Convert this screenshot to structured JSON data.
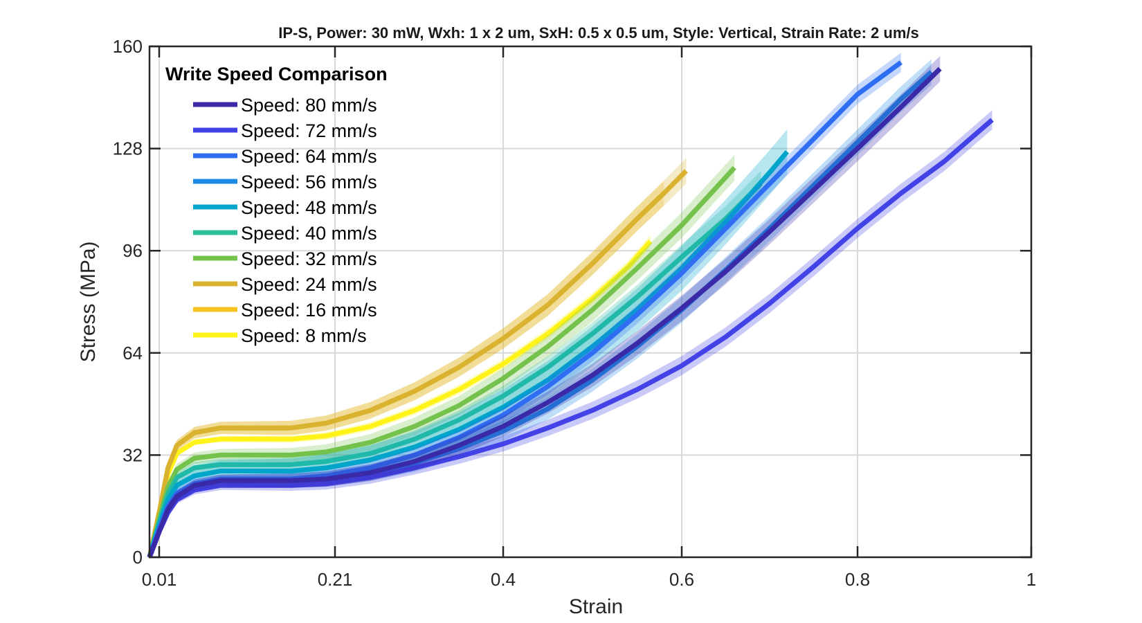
{
  "chart_data": {
    "type": "line",
    "title": "IP-S, Power: 30 mW, Wxh: 1 x 2 um, SxH: 0.5 x 0.5 um, Style: Vertical, Strain Rate: 2 um/s",
    "xlabel": "Strain",
    "ylabel": "Stress (MPa)",
    "xlim": [
      0.0,
      1.0
    ],
    "ylim": [
      0,
      160
    ],
    "xticks": [
      0.01,
      0.21,
      0.4,
      0.6,
      0.8,
      1.0
    ],
    "xtick_labels": [
      "0.01",
      "0.21",
      "0.4",
      "0.6",
      "0.8",
      "1"
    ],
    "yticks": [
      0,
      32,
      64,
      96,
      128,
      160
    ],
    "ytick_labels": [
      "0",
      "32",
      "64",
      "96",
      "128",
      "160"
    ],
    "grid": true,
    "legend": {
      "title": "Write Speed Comparison",
      "position": "top-left"
    },
    "series": [
      {
        "name": "Speed: 80 mm/s",
        "color": "#3a2aa8",
        "band": 4,
        "x": [
          0.0,
          0.01,
          0.02,
          0.03,
          0.05,
          0.08,
          0.12,
          0.16,
          0.2,
          0.25,
          0.3,
          0.35,
          0.4,
          0.45,
          0.5,
          0.55,
          0.6,
          0.65,
          0.7,
          0.75,
          0.8,
          0.85,
          0.88,
          0.895
        ],
        "y": [
          0,
          8,
          15,
          19,
          22.5,
          24,
          24,
          24,
          24.5,
          26.5,
          30,
          35,
          41,
          48.5,
          57,
          67,
          78,
          89.5,
          102,
          115,
          128,
          141,
          149,
          153
        ]
      },
      {
        "name": "Speed: 72 mm/s",
        "color": "#4242e6",
        "band": 3,
        "x": [
          0.0,
          0.01,
          0.02,
          0.03,
          0.05,
          0.08,
          0.12,
          0.16,
          0.2,
          0.25,
          0.3,
          0.35,
          0.4,
          0.45,
          0.5,
          0.55,
          0.6,
          0.65,
          0.7,
          0.75,
          0.8,
          0.85,
          0.9,
          0.955
        ],
        "y": [
          0,
          8,
          14,
          18,
          21,
          22.5,
          22.5,
          22.5,
          23,
          25,
          28,
          31.5,
          35.5,
          40.5,
          46,
          52.5,
          60,
          69,
          79.5,
          91,
          103,
          114,
          124,
          137
        ]
      },
      {
        "name": "Speed: 64 mm/s",
        "color": "#2f6ef2",
        "band": 3,
        "x": [
          0.0,
          0.01,
          0.02,
          0.03,
          0.05,
          0.08,
          0.12,
          0.16,
          0.2,
          0.25,
          0.3,
          0.35,
          0.4,
          0.45,
          0.5,
          0.55,
          0.6,
          0.65,
          0.7,
          0.75,
          0.8,
          0.85
        ],
        "y": [
          0,
          9,
          16,
          20,
          23,
          24.5,
          24.5,
          24.5,
          25.5,
          28,
          32,
          37.5,
          44.5,
          53.5,
          64,
          76,
          89,
          103,
          117,
          131,
          145,
          155
        ]
      },
      {
        "name": "Speed: 56 mm/s",
        "color": "#1e88e5",
        "band": 4,
        "x": [
          0.0,
          0.01,
          0.02,
          0.03,
          0.05,
          0.08,
          0.12,
          0.16,
          0.2,
          0.25,
          0.3,
          0.35,
          0.4,
          0.45,
          0.5,
          0.55,
          0.6,
          0.65,
          0.7,
          0.75,
          0.8,
          0.85,
          0.885
        ],
        "y": [
          0,
          9,
          16,
          20,
          23,
          24,
          24,
          24,
          24.5,
          26.5,
          29.5,
          34,
          39.5,
          46.5,
          55.5,
          66,
          77.5,
          90,
          103,
          116.5,
          130,
          143.5,
          152
        ]
      },
      {
        "name": "Speed: 48 mm/s",
        "color": "#00a6c9",
        "band": 7,
        "x": [
          0.0,
          0.01,
          0.02,
          0.03,
          0.05,
          0.08,
          0.12,
          0.16,
          0.2,
          0.25,
          0.3,
          0.35,
          0.4,
          0.45,
          0.5,
          0.55,
          0.6,
          0.65,
          0.7,
          0.72
        ],
        "y": [
          0,
          10,
          18,
          22.5,
          25.5,
          27,
          27,
          27,
          28,
          30.5,
          34.5,
          40,
          47,
          55.5,
          66,
          77.5,
          90.5,
          105,
          120.5,
          127
        ]
      },
      {
        "name": "Speed: 40 mm/s",
        "color": "#2dbf9b",
        "band": 4,
        "x": [
          0.0,
          0.01,
          0.02,
          0.03,
          0.05,
          0.08,
          0.12,
          0.16,
          0.2,
          0.25,
          0.3,
          0.35,
          0.4,
          0.45,
          0.5,
          0.55,
          0.6,
          0.65,
          0.69
        ],
        "y": [
          0,
          11,
          20,
          25,
          28,
          29,
          29,
          29,
          30,
          32.5,
          37,
          43,
          50.5,
          59.5,
          70,
          81.5,
          94,
          106,
          117
        ]
      },
      {
        "name": "Speed: 32 mm/s",
        "color": "#74c24c",
        "band": 4,
        "x": [
          0.0,
          0.01,
          0.02,
          0.03,
          0.05,
          0.08,
          0.12,
          0.16,
          0.2,
          0.25,
          0.3,
          0.35,
          0.4,
          0.45,
          0.5,
          0.55,
          0.6,
          0.66
        ],
        "y": [
          0,
          12,
          22,
          27.5,
          31,
          32,
          32,
          32,
          33,
          36,
          41,
          47.5,
          56,
          66,
          77.5,
          90.5,
          104,
          122
        ]
      },
      {
        "name": "Speed: 24 mm/s",
        "color": "#d9b22f",
        "band": 4,
        "x": [
          0.0,
          0.01,
          0.02,
          0.03,
          0.05,
          0.08,
          0.12,
          0.16,
          0.2,
          0.25,
          0.3,
          0.35,
          0.4,
          0.45,
          0.5,
          0.55,
          0.58,
          0.605
        ],
        "y": [
          0,
          14,
          28,
          35,
          39,
          40.5,
          40.5,
          40.5,
          42,
          46,
          52,
          59.5,
          68.5,
          79,
          92,
          106,
          114,
          121
        ]
      },
      {
        "name": "Speed: 16 mm/s",
        "color": "#f5c21f",
        "band": 4,
        "x": [
          0.0,
          0.01,
          0.02,
          0.03,
          0.05,
          0.08,
          0.12,
          0.16,
          0.2,
          0.25,
          0.3,
          0.35,
          0.4,
          0.45,
          0.5,
          0.55,
          0.58
        ],
        "y": [
          0,
          14,
          28,
          35,
          39,
          40.5,
          40.5,
          40.5,
          42,
          46,
          52,
          59.5,
          68.5,
          79,
          92,
          106,
          114
        ]
      },
      {
        "name": "Speed: 8 mm/s",
        "color": "#fff31a",
        "band": 2,
        "x": [
          0.0,
          0.01,
          0.02,
          0.03,
          0.05,
          0.08,
          0.12,
          0.16,
          0.2,
          0.25,
          0.3,
          0.35,
          0.4,
          0.45,
          0.5,
          0.54,
          0.565
        ],
        "y": [
          0,
          14,
          26,
          32.5,
          36,
          37,
          37,
          37,
          38,
          41,
          46,
          52.5,
          60.5,
          70,
          81,
          91,
          99
        ]
      }
    ]
  }
}
